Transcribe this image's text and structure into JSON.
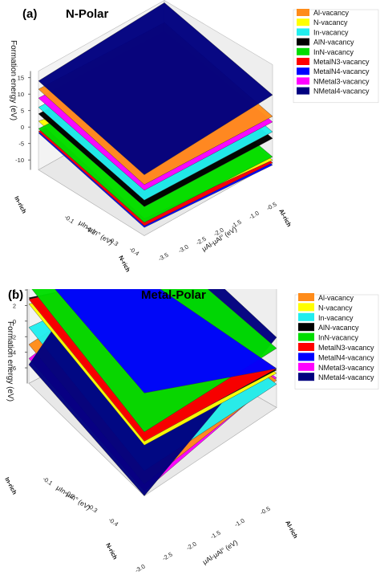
{
  "chart_data": [
    {
      "type": "surface",
      "panel_label": "(a)",
      "title": "N-Polar",
      "zlabel": "Formation energy (eV)",
      "ylabel": "μIn-μIn° (eV)",
      "xlabel": "μAl-μAl° (eV)",
      "z_ticks": [
        "15",
        "10",
        "5",
        "0",
        "-5",
        "-10"
      ],
      "y_ticks": [
        "-0.1",
        "-0.2",
        "-0.3",
        "-0.4"
      ],
      "x_ticks": [
        "-3.5",
        "-3.0",
        "-2.5",
        "-2.0",
        "-1.5",
        "-1.0",
        "-0.5"
      ],
      "zlim": [
        -13,
        17
      ],
      "y_annotations": {
        "start": "In-rich",
        "end": "N-rich"
      },
      "x_annotations": {
        "end": "Al-rich"
      },
      "legend_position": "right",
      "series": [
        {
          "name": "Al-vacancy",
          "color": "#ff8c1a",
          "corners": [
            11.5,
            10.3,
            2.5,
            1.3
          ]
        },
        {
          "name": "N-vacancy",
          "color": "#ffff00",
          "corners": [
            1.8,
            -7.0,
            -7.8,
            -12.0
          ]
        },
        {
          "name": "In-vacancy",
          "color": "#22eeee",
          "corners": [
            6.0,
            4.8,
            -2.2,
            -3.4
          ]
        },
        {
          "name": "AlN-vacancy",
          "color": "#000000",
          "corners": [
            4.0,
            2.8,
            -4.2,
            -5.4
          ]
        },
        {
          "name": "InN-vacancy",
          "color": "#00dd00",
          "corners": [
            -0.5,
            -2.8,
            -9.0,
            -11.0
          ]
        },
        {
          "name": "MetalN3-vacancy",
          "color": "#ff0000",
          "corners": [
            -1.3,
            -3.8,
            -10.0,
            -12.8
          ]
        },
        {
          "name": "MetalN4-vacancy",
          "color": "#0000ff",
          "corners": [
            -1.8,
            -4.5,
            -10.5,
            -13.5
          ]
        },
        {
          "name": "NMetal3-vacancy",
          "color": "#ff00ff",
          "corners": [
            8.8,
            7.6,
            0.8,
            -0.4
          ]
        },
        {
          "name": "NMetal4-vacancy",
          "color": "#00007f",
          "corners": [
            14.0,
            16.3,
            5.5,
            7.8
          ]
        }
      ]
    },
    {
      "type": "surface",
      "panel_label": "(b)",
      "title": "Metal-Polar",
      "zlabel": "Formation energy (eV)",
      "ylabel": "μIn-μIn° (eV)",
      "xlabel": "μAl-μAl° (eV)",
      "z_ticks": [
        "8",
        "6",
        "4",
        "2",
        "0",
        "-2",
        "-4",
        "-6"
      ],
      "y_ticks": [
        "-0.1",
        "-0.2",
        "-0.3",
        "-0.4"
      ],
      "x_ticks": [
        "-3.0",
        "-2.5",
        "-2.0",
        "-1.5",
        "-1.0",
        "-0.5"
      ],
      "zlim": [
        -8,
        9
      ],
      "y_annotations": {
        "start": "In-rich",
        "end": "N-rich"
      },
      "x_annotations": {
        "end": "Al-rich"
      },
      "legend_position": "right",
      "series": [
        {
          "name": "Al-vacancy",
          "color": "#ff8c1a",
          "corners": [
            -3.0,
            -1.2,
            -6.5,
            -4.5
          ]
        },
        {
          "name": "N-vacancy",
          "color": "#ffff00",
          "corners": [
            2.2,
            -1.8,
            -1.5,
            -3.6
          ]
        },
        {
          "name": "In-vacancy",
          "color": "#22eeee",
          "corners": [
            -0.8,
            -1.6,
            -4.8,
            -5.0
          ]
        },
        {
          "name": "AlN-vacancy",
          "color": "#000000",
          "corners": [
            3.0,
            -1.4,
            -0.8,
            -3.2
          ]
        },
        {
          "name": "InN-vacancy",
          "color": "#00dd00",
          "corners": [
            4.6,
            4.8,
            0.2,
            -0.4
          ]
        },
        {
          "name": "MetalN3-vacancy",
          "color": "#ff0000",
          "corners": [
            2.8,
            -1.2,
            -1.0,
            -3.0
          ]
        },
        {
          "name": "MetalN4-vacancy",
          "color": "#0000ff",
          "corners": [
            8.0,
            -1.0,
            5.2,
            -3.0
          ]
        },
        {
          "name": "NMetal3-vacancy",
          "color": "#ff00ff",
          "corners": [
            -4.8,
            -1.4,
            -7.4,
            -4.2
          ]
        },
        {
          "name": "NMetal4-vacancy",
          "color": "#00007f",
          "corners": [
            -5.6,
            7.5,
            -8.0,
            1.0
          ]
        }
      ]
    }
  ]
}
